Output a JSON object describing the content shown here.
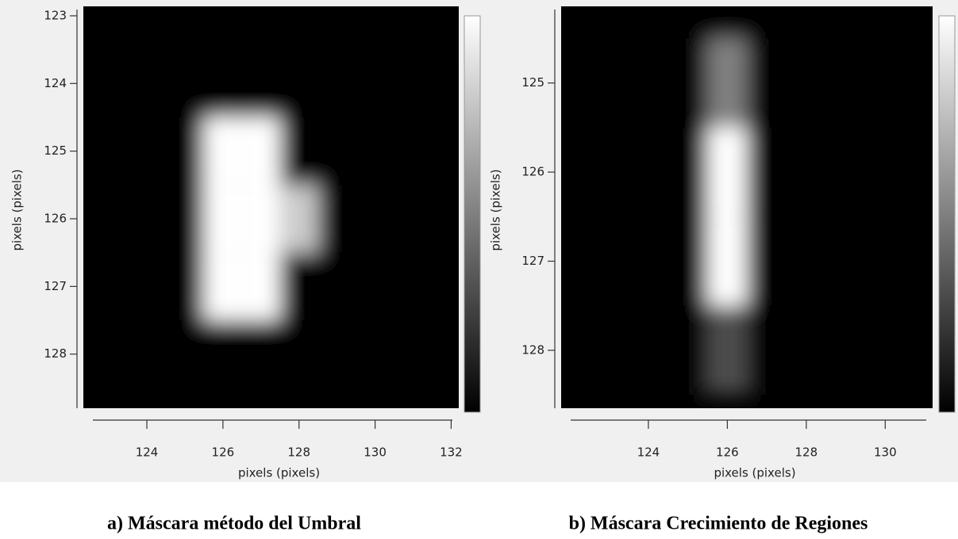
{
  "chart_data": [
    {
      "type": "heatmap",
      "colormap": "gray",
      "x": [
        123,
        124,
        125,
        126,
        127,
        128,
        129,
        130,
        131,
        132
      ],
      "y": [
        123,
        124,
        125,
        126,
        127,
        128
      ],
      "z": [
        [
          0,
          0,
          0,
          0,
          0,
          0,
          0,
          0,
          0,
          0
        ],
        [
          0,
          0,
          0,
          0,
          0,
          0,
          0,
          0,
          0,
          0
        ],
        [
          0,
          0,
          0,
          1,
          1,
          0,
          0,
          0,
          0,
          0
        ],
        [
          0,
          0,
          0,
          1,
          1,
          0.8,
          0,
          0,
          0,
          0
        ],
        [
          0,
          0,
          0,
          1,
          1,
          0,
          0,
          0,
          0,
          0
        ],
        [
          0,
          0,
          0,
          0,
          0,
          0,
          0,
          0,
          0,
          0
        ]
      ],
      "xlim": [
        122.33,
        132.2
      ],
      "ylim": [
        128.8,
        122.86
      ],
      "xticks": [
        124,
        126,
        128,
        130,
        132
      ],
      "yticks": [
        123,
        124,
        125,
        126,
        127,
        128
      ],
      "xlabel": "pixels (pixels)",
      "ylabel": "pixels (pixels)",
      "caption": "a) Máscara método del Umbral"
    },
    {
      "type": "heatmap",
      "colormap": "gray",
      "x": [
        122,
        123,
        124,
        125,
        126,
        127,
        128,
        129,
        130,
        131
      ],
      "y": [
        124,
        125,
        126,
        127,
        128
      ],
      "z": [
        [
          0,
          0,
          0,
          0,
          0,
          0,
          0,
          0,
          0,
          0
        ],
        [
          0,
          0,
          0,
          0,
          0.5,
          0,
          0,
          0,
          0,
          0
        ],
        [
          0,
          0,
          0,
          0,
          1,
          0,
          0,
          0,
          0,
          0
        ],
        [
          0,
          0,
          0,
          0,
          1,
          0,
          0,
          0,
          0,
          0
        ],
        [
          0,
          0,
          0,
          0,
          0.3,
          0,
          0,
          0,
          0,
          0
        ]
      ],
      "xlim": [
        121.79,
        131.2
      ],
      "ylim": [
        128.65,
        124.14
      ],
      "xticks": [
        124,
        126,
        128,
        130
      ],
      "yticks": [
        125,
        126,
        127,
        128
      ],
      "xlabel": "pixels (pixels)",
      "ylabel": "pixels (pixels)",
      "caption": "b) Máscara Crecimiento de Regiones"
    }
  ]
}
